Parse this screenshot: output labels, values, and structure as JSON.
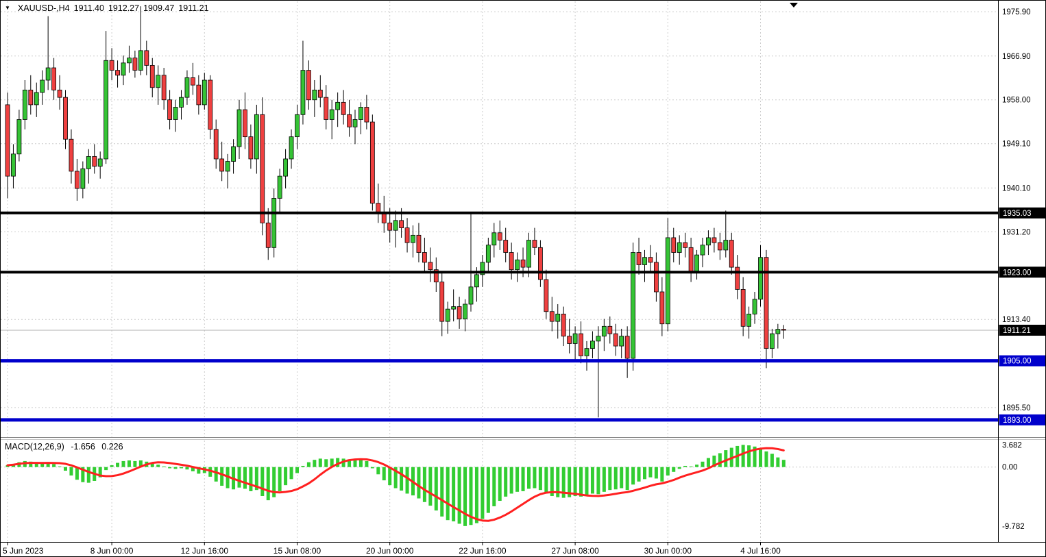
{
  "header": {
    "dropdown_icon": "▼",
    "symbol_period": "XAUUSD-,H4",
    "open": "1911.40",
    "high": "1912.27",
    "low": "1909.47",
    "close": "1911.21"
  },
  "colors": {
    "bull": "#35c335",
    "bear": "#ef4040",
    "wick": "#000000",
    "macd_hist": "#32cd32",
    "macd_signal": "#ff2020",
    "grid": "#cccccc",
    "current_price_line": "#b0b0b0",
    "line_black": "#000000",
    "line_blue": "#0000cc"
  },
  "chart_data": [
    {
      "type": "candlestick",
      "symbol": "XAUUSD-",
      "timeframe": "H4",
      "ylim": [
        1889.5,
        1978.0
      ],
      "y_ticks": [
        {
          "price": 1975.9,
          "label": "1975.90"
        },
        {
          "price": 1966.9,
          "label": "1966.90"
        },
        {
          "price": 1958.0,
          "label": "1958.00"
        },
        {
          "price": 1949.1,
          "label": "1949.10"
        },
        {
          "price": 1940.1,
          "label": "1940.10"
        },
        {
          "price": 1931.2,
          "label": "1931.20"
        },
        {
          "price": 1913.4,
          "label": "1913.40"
        },
        {
          "price": 1895.5,
          "label": "1895.50"
        }
      ],
      "x_ticks": [
        {
          "index": 0,
          "label": "5 Jun 2023"
        },
        {
          "index": 18,
          "label": "8 Jun 00:00"
        },
        {
          "index": 34,
          "label": "12 Jun 16:00"
        },
        {
          "index": 50,
          "label": "15 Jun 08:00"
        },
        {
          "index": 66,
          "label": "20 Jun 00:00"
        },
        {
          "index": 82,
          "label": "22 Jun 16:00"
        },
        {
          "index": 98,
          "label": "27 Jun 08:00"
        },
        {
          "index": 114,
          "label": "30 Jun 00:00"
        },
        {
          "index": 130,
          "label": "4 Jul 16:00"
        }
      ],
      "hlines": [
        {
          "price": 1935.03,
          "label": "1935.03",
          "color": "#000000",
          "width": 4
        },
        {
          "price": 1923.0,
          "label": "1923.00",
          "color": "#000000",
          "width": 4
        },
        {
          "price": 1905.0,
          "label": "1905.00",
          "color": "#0000cc",
          "width": 5
        },
        {
          "price": 1893.0,
          "label": "1893.00",
          "color": "#0000cc",
          "width": 5
        }
      ],
      "current_price": {
        "price": 1911.21,
        "label": "1911.21"
      },
      "candles": [
        [
          1957.0,
          1959.5,
          1938.0,
          1942.5
        ],
        [
          1942.5,
          1949.0,
          1940.0,
          1947.0
        ],
        [
          1947.0,
          1956.0,
          1945.5,
          1954.0
        ],
        [
          1954.0,
          1962.0,
          1952.0,
          1960.0
        ],
        [
          1960.0,
          1963.0,
          1955.0,
          1957.0
        ],
        [
          1957.0,
          1961.5,
          1954.5,
          1959.5
        ],
        [
          1959.5,
          1964.0,
          1957.0,
          1962.0
        ],
        [
          1962.0,
          1975.0,
          1960.0,
          1964.5
        ],
        [
          1964.5,
          1966.5,
          1958.0,
          1960.0
        ],
        [
          1960.0,
          1963.0,
          1956.0,
          1958.5
        ],
        [
          1958.5,
          1960.0,
          1948.0,
          1950.0
        ],
        [
          1950.0,
          1952.0,
          1941.0,
          1943.5
        ],
        [
          1943.5,
          1946.0,
          1937.5,
          1940.0
        ],
        [
          1940.0,
          1945.5,
          1938.0,
          1944.0
        ],
        [
          1944.0,
          1948.0,
          1941.0,
          1946.5
        ],
        [
          1946.5,
          1949.0,
          1943.0,
          1944.5
        ],
        [
          1944.5,
          1947.5,
          1942.0,
          1946.0
        ],
        [
          1946.0,
          1972.0,
          1945.0,
          1966.0
        ],
        [
          1966.0,
          1968.5,
          1962.0,
          1964.0
        ],
        [
          1964.0,
          1966.0,
          1960.5,
          1963.0
        ],
        [
          1963.0,
          1967.0,
          1961.0,
          1965.5
        ],
        [
          1965.5,
          1969.0,
          1963.5,
          1966.5
        ],
        [
          1966.5,
          1968.0,
          1962.5,
          1964.0
        ],
        [
          1964.0,
          1977.0,
          1963.0,
          1968.0
        ],
        [
          1968.0,
          1970.0,
          1963.0,
          1965.0
        ],
        [
          1965.0,
          1966.5,
          1958.5,
          1960.5
        ],
        [
          1960.5,
          1965.0,
          1957.0,
          1963.0
        ],
        [
          1963.0,
          1964.5,
          1956.0,
          1958.0
        ],
        [
          1958.0,
          1960.0,
          1952.0,
          1954.0
        ],
        [
          1954.0,
          1958.0,
          1951.5,
          1956.5
        ],
        [
          1956.5,
          1960.0,
          1954.0,
          1958.5
        ],
        [
          1958.5,
          1964.0,
          1957.0,
          1962.5
        ],
        [
          1962.5,
          1965.5,
          1959.0,
          1961.0
        ],
        [
          1961.0,
          1963.0,
          1955.0,
          1957.0
        ],
        [
          1957.0,
          1963.5,
          1956.0,
          1962.0
        ],
        [
          1962.0,
          1963.0,
          1950.0,
          1952.0
        ],
        [
          1952.0,
          1954.0,
          1944.0,
          1946.0
        ],
        [
          1946.0,
          1949.5,
          1941.5,
          1943.5
        ],
        [
          1943.5,
          1947.0,
          1940.0,
          1945.5
        ],
        [
          1945.5,
          1950.0,
          1943.0,
          1948.5
        ],
        [
          1948.5,
          1958.0,
          1946.0,
          1956.0
        ],
        [
          1956.0,
          1959.5,
          1948.0,
          1950.5
        ],
        [
          1950.5,
          1953.0,
          1944.0,
          1946.0
        ],
        [
          1946.0,
          1957.0,
          1943.0,
          1955.0
        ],
        [
          1955.0,
          1958.5,
          1930.5,
          1933.0
        ],
        [
          1933.0,
          1936.0,
          1925.5,
          1928.0
        ],
        [
          1928.0,
          1940.0,
          1926.0,
          1938.0
        ],
        [
          1938.0,
          1944.0,
          1935.0,
          1942.5
        ],
        [
          1942.5,
          1948.0,
          1940.0,
          1946.0
        ],
        [
          1946.0,
          1952.0,
          1944.0,
          1950.5
        ],
        [
          1950.5,
          1957.0,
          1948.0,
          1955.0
        ],
        [
          1955.0,
          1970.0,
          1953.0,
          1964.0
        ],
        [
          1964.0,
          1966.0,
          1956.0,
          1958.0
        ],
        [
          1958.0,
          1962.0,
          1954.5,
          1960.0
        ],
        [
          1960.0,
          1963.0,
          1956.5,
          1958.5
        ],
        [
          1958.5,
          1961.0,
          1952.0,
          1954.0
        ],
        [
          1954.0,
          1958.0,
          1950.0,
          1956.0
        ],
        [
          1956.0,
          1959.5,
          1952.5,
          1957.5
        ],
        [
          1957.5,
          1960.0,
          1953.0,
          1955.0
        ],
        [
          1955.0,
          1958.0,
          1950.5,
          1952.5
        ],
        [
          1952.5,
          1956.0,
          1949.0,
          1954.0
        ],
        [
          1954.0,
          1957.5,
          1951.0,
          1956.5
        ],
        [
          1956.5,
          1959.0,
          1952.0,
          1953.5
        ],
        [
          1953.5,
          1955.0,
          1935.5,
          1937.0
        ],
        [
          1937.0,
          1941.0,
          1933.0,
          1935.0
        ],
        [
          1935.0,
          1938.5,
          1931.0,
          1933.0
        ],
        [
          1933.0,
          1936.0,
          1929.0,
          1931.5
        ],
        [
          1931.5,
          1935.5,
          1928.0,
          1933.5
        ],
        [
          1933.5,
          1936.0,
          1930.0,
          1932.0
        ],
        [
          1932.0,
          1934.0,
          1927.0,
          1929.0
        ],
        [
          1929.0,
          1932.5,
          1926.0,
          1930.5
        ],
        [
          1930.5,
          1933.0,
          1925.0,
          1927.0
        ],
        [
          1927.0,
          1930.0,
          1923.0,
          1925.0
        ],
        [
          1925.0,
          1928.0,
          1921.0,
          1923.5
        ],
        [
          1923.5,
          1926.0,
          1919.0,
          1921.0
        ],
        [
          1921.0,
          1923.0,
          1910.0,
          1913.0
        ],
        [
          1913.0,
          1917.0,
          1910.5,
          1915.5
        ],
        [
          1915.5,
          1919.5,
          1913.0,
          1916.0
        ],
        [
          1916.0,
          1918.0,
          1911.5,
          1913.5
        ],
        [
          1913.5,
          1917.5,
          1911.0,
          1916.5
        ],
        [
          1916.5,
          1935.0,
          1915.0,
          1920.0
        ],
        [
          1920.0,
          1924.0,
          1917.0,
          1922.5
        ],
        [
          1922.5,
          1926.5,
          1920.0,
          1925.0
        ],
        [
          1925.0,
          1930.0,
          1923.0,
          1928.5
        ],
        [
          1928.5,
          1933.0,
          1926.0,
          1931.0
        ],
        [
          1931.0,
          1933.5,
          1927.5,
          1929.5
        ],
        [
          1929.5,
          1932.0,
          1925.0,
          1927.0
        ],
        [
          1927.0,
          1929.0,
          1921.5,
          1923.5
        ],
        [
          1923.5,
          1927.0,
          1921.0,
          1925.5
        ],
        [
          1925.5,
          1928.0,
          1922.0,
          1924.0
        ],
        [
          1924.0,
          1931.0,
          1922.0,
          1929.5
        ],
        [
          1929.5,
          1932.0,
          1926.5,
          1928.0
        ],
        [
          1928.0,
          1929.5,
          1920.0,
          1921.5
        ],
        [
          1921.5,
          1923.5,
          1913.5,
          1915.0
        ],
        [
          1915.0,
          1918.0,
          1911.0,
          1913.0
        ],
        [
          1913.0,
          1916.5,
          1909.5,
          1914.5
        ],
        [
          1914.5,
          1916.0,
          1908.0,
          1910.0
        ],
        [
          1910.0,
          1913.5,
          1906.5,
          1908.5
        ],
        [
          1908.5,
          1912.0,
          1905.0,
          1910.5
        ],
        [
          1910.5,
          1913.0,
          1904.5,
          1906.0
        ],
        [
          1906.0,
          1909.0,
          1903.0,
          1907.5
        ],
        [
          1907.5,
          1911.0,
          1905.5,
          1909.0
        ],
        [
          1909.0,
          1912.0,
          1893.5,
          1910.0
        ],
        [
          1910.0,
          1913.5,
          1907.0,
          1912.0
        ],
        [
          1912.0,
          1914.0,
          1908.5,
          1910.5
        ],
        [
          1910.5,
          1912.5,
          1906.0,
          1908.0
        ],
        [
          1908.0,
          1911.5,
          1905.5,
          1910.0
        ],
        [
          1910.0,
          1912.0,
          1901.5,
          1905.5
        ],
        [
          1905.5,
          1929.0,
          1903.0,
          1927.0
        ],
        [
          1927.0,
          1930.0,
          1922.5,
          1924.5
        ],
        [
          1924.5,
          1927.5,
          1921.0,
          1926.0
        ],
        [
          1926.0,
          1928.5,
          1923.0,
          1925.0
        ],
        [
          1925.0,
          1927.0,
          1917.0,
          1919.0
        ],
        [
          1919.0,
          1922.0,
          1910.0,
          1912.5
        ],
        [
          1912.5,
          1934.0,
          1911.0,
          1930.0
        ],
        [
          1930.0,
          1932.0,
          1925.0,
          1927.0
        ],
        [
          1927.0,
          1930.5,
          1924.5,
          1929.0
        ],
        [
          1929.0,
          1931.0,
          1926.0,
          1928.0
        ],
        [
          1928.0,
          1930.0,
          1921.0,
          1923.0
        ],
        [
          1923.0,
          1927.5,
          1921.5,
          1926.5
        ],
        [
          1926.5,
          1930.0,
          1924.0,
          1928.5
        ],
        [
          1928.5,
          1931.5,
          1926.5,
          1930.0
        ],
        [
          1930.0,
          1932.0,
          1927.0,
          1929.0
        ],
        [
          1929.0,
          1931.0,
          1925.5,
          1927.5
        ],
        [
          1927.5,
          1935.5,
          1926.0,
          1929.5
        ],
        [
          1929.5,
          1931.0,
          1922.5,
          1924.0
        ],
        [
          1924.0,
          1926.5,
          1917.5,
          1919.5
        ],
        [
          1919.5,
          1922.0,
          1910.0,
          1912.0
        ],
        [
          1912.0,
          1916.0,
          1909.5,
          1914.5
        ],
        [
          1914.5,
          1919.0,
          1912.5,
          1917.5
        ],
        [
          1917.5,
          1928.5,
          1916.0,
          1926.0
        ],
        [
          1926.0,
          1927.5,
          1903.5,
          1907.5
        ],
        [
          1907.5,
          1911.5,
          1905.5,
          1910.5
        ],
        [
          1910.5,
          1912.5,
          1907.5,
          1911.4
        ],
        [
          1911.4,
          1912.27,
          1909.47,
          1911.21
        ]
      ]
    },
    {
      "type": "bar",
      "title": "MACD(12,26,9)",
      "value_main": "-1.656",
      "value_signal": "0.226",
      "ylim": [
        -12.3,
        4.4
      ],
      "signal_period": 9,
      "y_ticks": [
        {
          "value": 3.682,
          "label": "3.682"
        },
        {
          "value": 0,
          "label": "0.00"
        },
        {
          "value": -9.782,
          "label": "-9.782"
        }
      ],
      "histogram": [
        0.3,
        0.5,
        0.8,
        1.0,
        0.9,
        0.7,
        0.6,
        0.8,
        0.5,
        0.1,
        -0.6,
        -1.4,
        -2.1,
        -2.5,
        -2.6,
        -2.3,
        -1.7,
        -0.5,
        0.3,
        0.7,
        1.0,
        1.1,
        1.0,
        1.1,
        0.9,
        0.6,
        0.4,
        0.1,
        -0.2,
        -0.3,
        -0.2,
        -0.4,
        -0.7,
        -1.1,
        -1.0,
        -1.6,
        -2.4,
        -3.1,
        -3.5,
        -3.7,
        -3.4,
        -3.6,
        -4.0,
        -3.8,
        -4.8,
        -5.5,
        -5.0,
        -4.0,
        -3.0,
        -2.0,
        -1.0,
        0.2,
        0.8,
        1.2,
        1.4,
        1.3,
        1.4,
        1.5,
        1.4,
        1.2,
        1.1,
        1.2,
        1.0,
        -0.2,
        -1.2,
        -2.2,
        -3.0,
        -3.5,
        -3.9,
        -4.4,
        -4.7,
        -5.2,
        -5.8,
        -6.4,
        -7.2,
        -8.2,
        -8.8,
        -9.0,
        -9.4,
        -9.782,
        -9.6,
        -9.3,
        -8.6,
        -7.6,
        -6.5,
        -5.6,
        -4.9,
        -4.4,
        -4.1,
        -4.0,
        -3.6,
        -3.5,
        -3.8,
        -4.3,
        -4.8,
        -5.0,
        -5.1,
        -5.0,
        -4.8,
        -4.9,
        -4.7,
        -4.4,
        -4.5,
        -4.1,
        -3.8,
        -3.7,
        -3.5,
        -3.8,
        -2.9,
        -2.4,
        -2.0,
        -1.7,
        -1.9,
        -2.4,
        -1.4,
        -0.8,
        -0.3,
        0.2,
        0.1,
        0.4,
        0.9,
        1.5,
        1.9,
        2.3,
        2.8,
        3.2,
        3.5,
        3.682,
        3.6,
        3.4,
        3.1,
        2.6,
        2.2,
        1.6,
        1.2
      ]
    }
  ]
}
